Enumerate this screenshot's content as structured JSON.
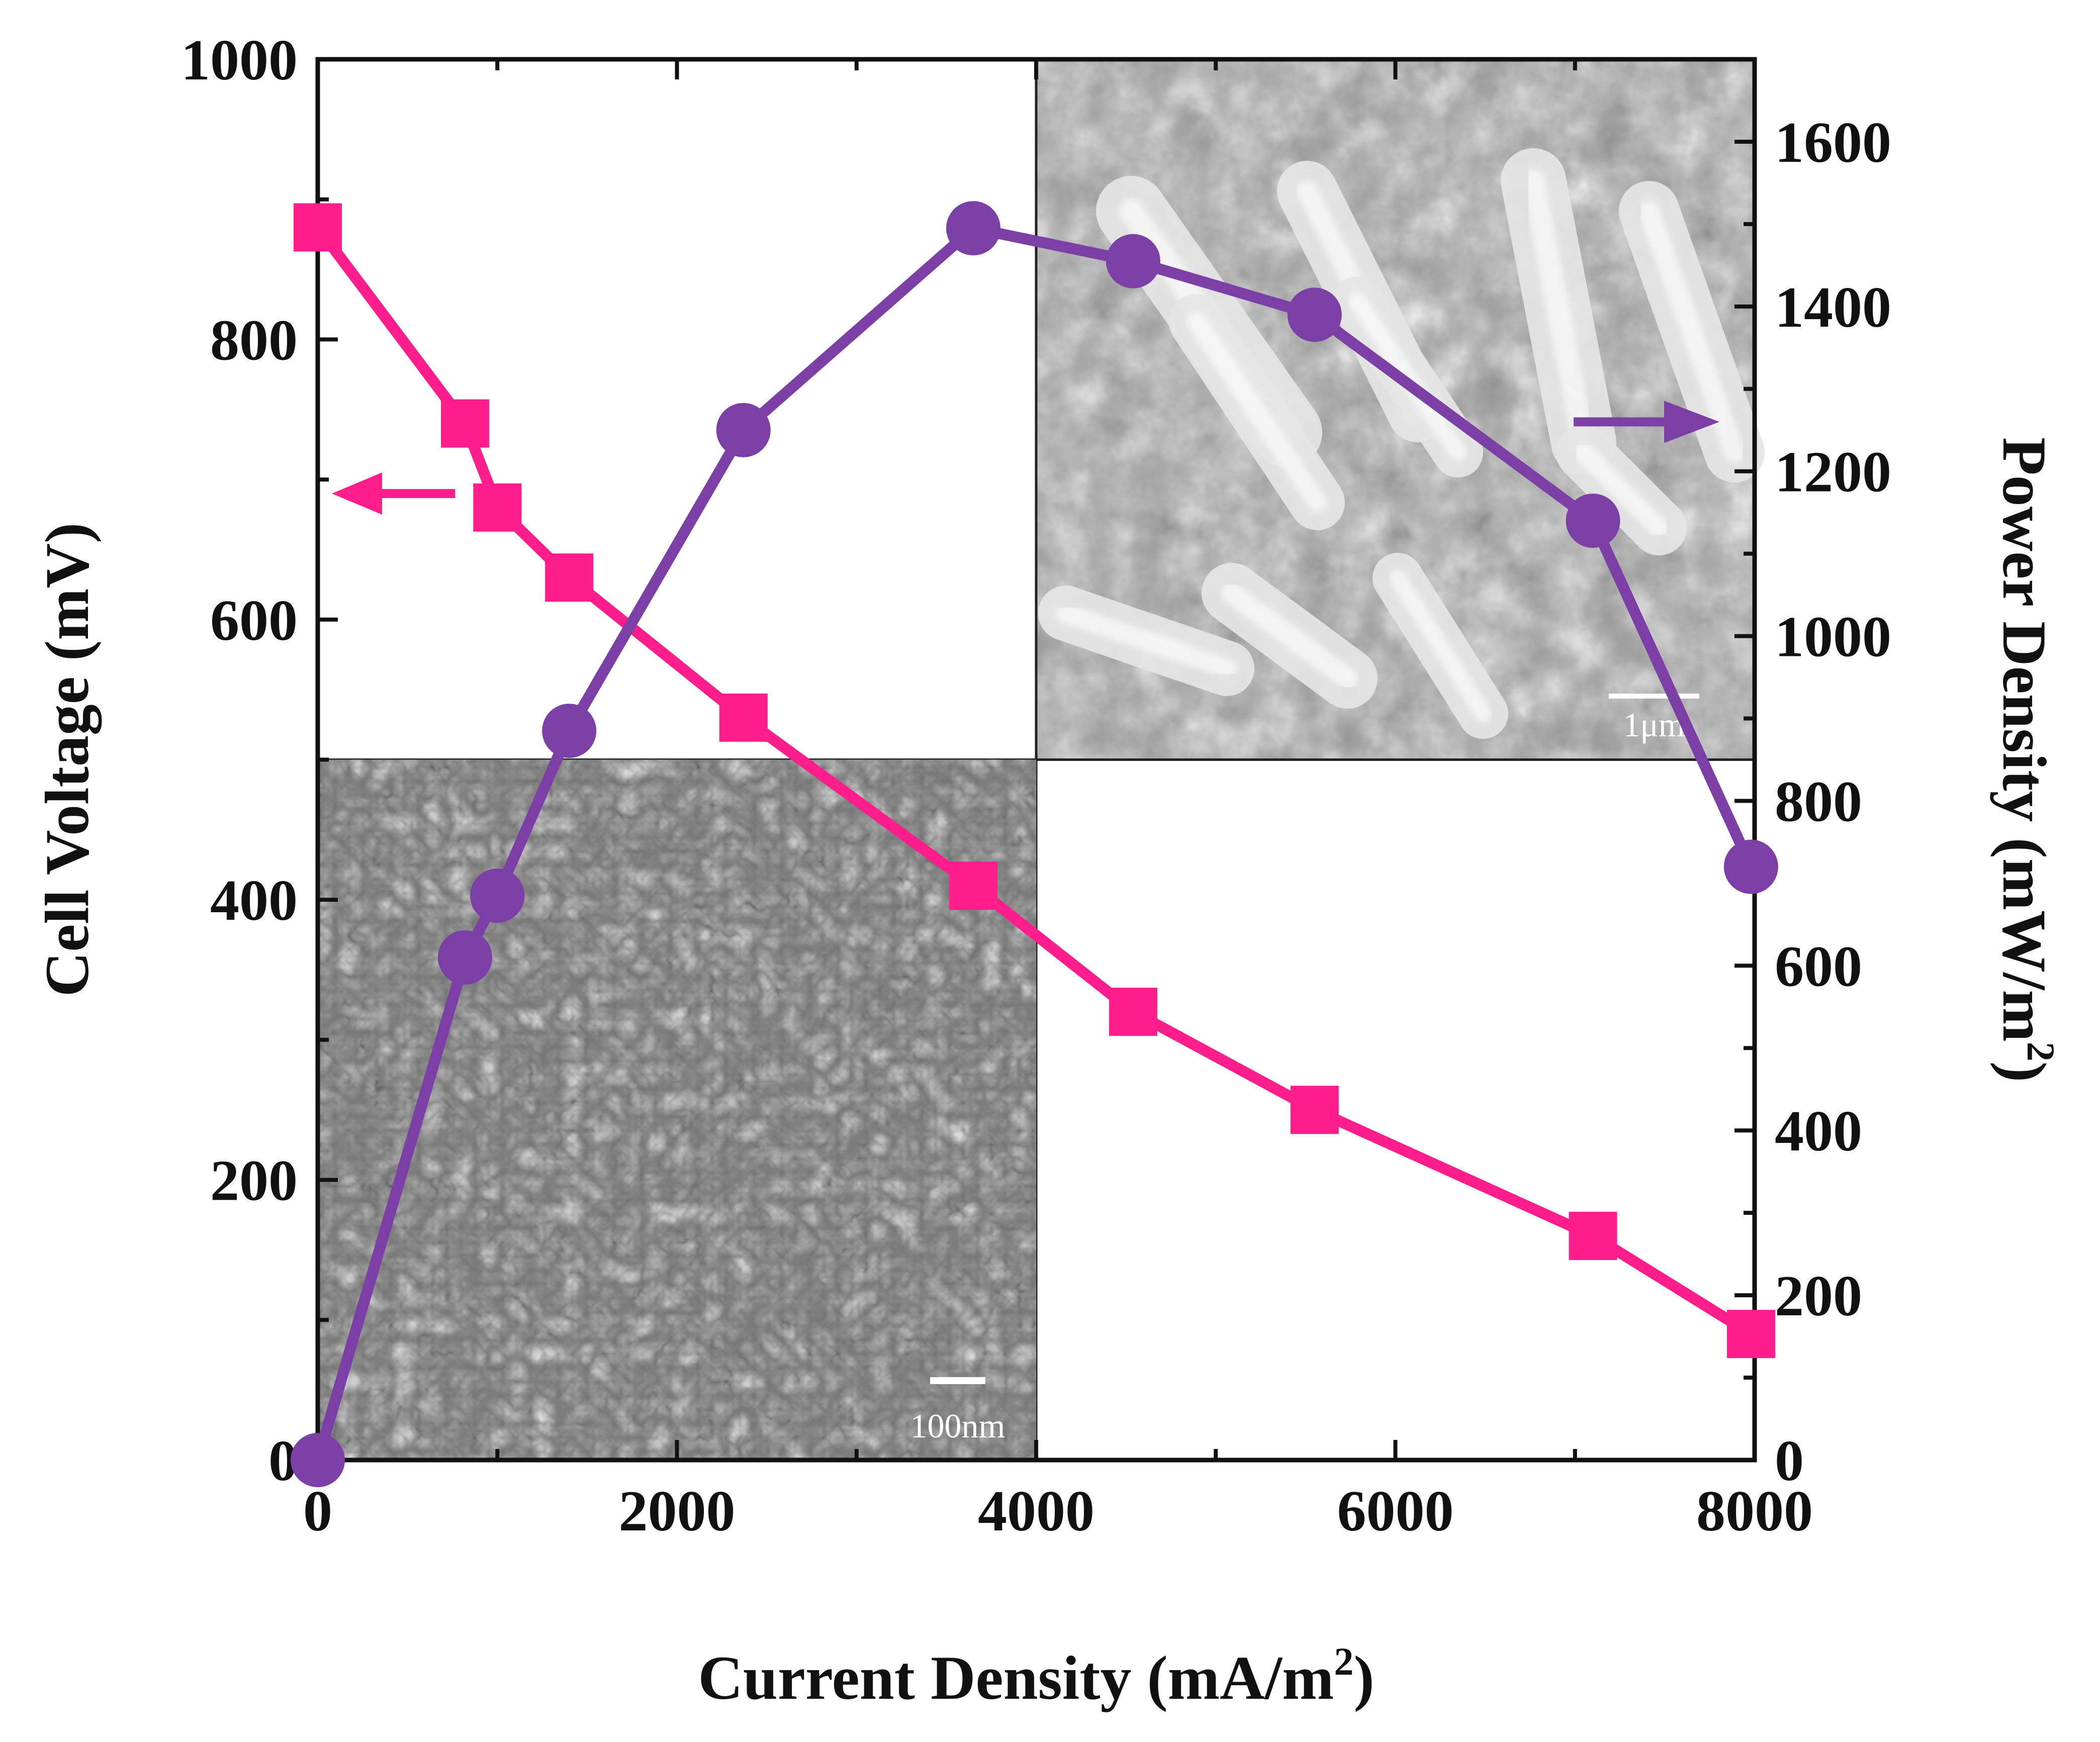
{
  "chart_data": {
    "type": "line",
    "title": "",
    "xlabel": "Current Density (mA/m",
    "xlabel_sup": "2",
    "xlabel_tail": ")",
    "ylabel_left": "Cell Voltage (mV)",
    "ylabel_right": "Power Density (mW/m",
    "ylabel_right_sup": "2",
    "ylabel_right_tail": ")",
    "xlim": [
      0,
      8000
    ],
    "ylim_left": [
      0,
      1000
    ],
    "ylim_right": [
      0,
      1700
    ],
    "x_ticks": [
      0,
      2000,
      4000,
      6000,
      8000
    ],
    "y_left_ticks": [
      0,
      200,
      400,
      600,
      800,
      1000
    ],
    "y_right_ticks": [
      0,
      200,
      400,
      600,
      800,
      1000,
      1200,
      1400,
      1600
    ],
    "series": [
      {
        "name": "Cell Voltage",
        "axis": "left",
        "marker": "square",
        "color": "#ff1e8c",
        "x": [
          0,
          820,
          1000,
          1400,
          2370,
          3650,
          4540,
          5550,
          7100,
          7980
        ],
        "y": [
          880,
          740,
          680,
          630,
          530,
          410,
          320,
          250,
          160,
          90
        ]
      },
      {
        "name": "Power Density",
        "axis": "right",
        "marker": "circle",
        "color": "#7b3fa6",
        "x": [
          0,
          820,
          1000,
          1400,
          2370,
          3650,
          4540,
          5550,
          7100,
          7980
        ],
        "y": [
          0,
          610,
          685,
          885,
          1250,
          1495,
          1455,
          1390,
          1140,
          720
        ]
      }
    ],
    "annotations": [
      {
        "type": "arrow",
        "direction": "left",
        "target_axis": "left",
        "color": "#ff1e8c"
      },
      {
        "type": "arrow",
        "direction": "right",
        "target_axis": "right",
        "color": "#7b3fa6"
      },
      {
        "type": "inset-image",
        "position": "top-right",
        "description": "SEM of rod bacteria",
        "scale_label": "1μm"
      },
      {
        "type": "inset-image",
        "position": "bottom-left",
        "description": "SEM of nanosheet structure",
        "scale_label": "100nm"
      }
    ]
  }
}
